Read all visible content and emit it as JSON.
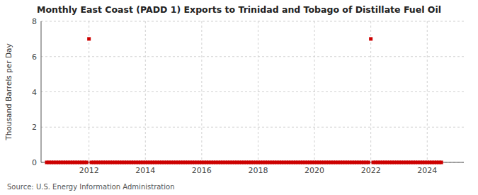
{
  "chart_data": {
    "type": "scatter",
    "title": "Monthly East Coast (PADD 1) Exports to Trinidad and Tobago of Distillate Fuel Oil",
    "ylabel": "Thousand Barrels per Day",
    "source": "Source: U.S. Energy Information Administration",
    "color": "#cc0000",
    "marker": "square",
    "grid": true,
    "xlim": [
      2010.3,
      2025.3
    ],
    "xticks": [
      2012,
      2014,
      2016,
      2018,
      2020,
      2022,
      2024
    ],
    "ylim": [
      0,
      8
    ],
    "yticks": [
      0,
      2,
      4,
      6,
      8
    ],
    "x": [
      2010.5,
      2010.583,
      2010.667,
      2010.75,
      2010.833,
      2010.917,
      2011.0,
      2011.083,
      2011.167,
      2011.25,
      2011.333,
      2011.417,
      2011.5,
      2011.583,
      2011.667,
      2011.75,
      2011.833,
      2011.917,
      2012.0,
      2012.083,
      2012.167,
      2012.25,
      2012.333,
      2012.417,
      2012.5,
      2012.583,
      2012.667,
      2012.75,
      2012.833,
      2012.917,
      2013.0,
      2013.083,
      2013.167,
      2013.25,
      2013.333,
      2013.417,
      2013.5,
      2013.583,
      2013.667,
      2013.75,
      2013.833,
      2013.917,
      2014.0,
      2014.083,
      2014.167,
      2014.25,
      2014.333,
      2014.417,
      2014.5,
      2014.583,
      2014.667,
      2014.75,
      2014.833,
      2014.917,
      2015.0,
      2015.083,
      2015.167,
      2015.25,
      2015.333,
      2015.417,
      2015.5,
      2015.583,
      2015.667,
      2015.75,
      2015.833,
      2015.917,
      2016.0,
      2016.083,
      2016.167,
      2016.25,
      2016.333,
      2016.417,
      2016.5,
      2016.583,
      2016.667,
      2016.75,
      2016.833,
      2016.917,
      2017.0,
      2017.083,
      2017.167,
      2017.25,
      2017.333,
      2017.417,
      2017.5,
      2017.583,
      2017.667,
      2017.75,
      2017.833,
      2017.917,
      2018.0,
      2018.083,
      2018.167,
      2018.25,
      2018.333,
      2018.417,
      2018.5,
      2018.583,
      2018.667,
      2018.75,
      2018.833,
      2018.917,
      2019.0,
      2019.083,
      2019.167,
      2019.25,
      2019.333,
      2019.417,
      2019.5,
      2019.583,
      2019.667,
      2019.75,
      2019.833,
      2019.917,
      2020.0,
      2020.083,
      2020.167,
      2020.25,
      2020.333,
      2020.417,
      2020.5,
      2020.583,
      2020.667,
      2020.75,
      2020.833,
      2020.917,
      2021.0,
      2021.083,
      2021.167,
      2021.25,
      2021.333,
      2021.417,
      2021.5,
      2021.583,
      2021.667,
      2021.75,
      2021.833,
      2021.917,
      2022.0,
      2022.083,
      2022.167,
      2022.25,
      2022.333,
      2022.417,
      2022.5,
      2022.583,
      2022.667,
      2022.75,
      2022.833,
      2022.917,
      2023.0,
      2023.083,
      2023.167,
      2023.25,
      2023.333,
      2023.417,
      2023.5,
      2023.583,
      2023.667,
      2023.75,
      2023.833,
      2023.917,
      2024.0,
      2024.083,
      2024.167,
      2024.25,
      2024.333,
      2024.417,
      2024.5
    ],
    "values": [
      0.0,
      0.0,
      0.0,
      0.0,
      0.0,
      0.0,
      0.0,
      0.0,
      0.0,
      0.0,
      0.0,
      0.0,
      0.0,
      0.0,
      0.0,
      0.0,
      0.0,
      0.0,
      7.0,
      0.0,
      0.0,
      0.0,
      0.0,
      0.0,
      0.0,
      0.0,
      0.0,
      0.0,
      0.0,
      0.0,
      0.0,
      0.0,
      0.0,
      0.0,
      0.0,
      0.0,
      0.0,
      0.0,
      0.0,
      0.0,
      0.0,
      0.0,
      0.0,
      0.0,
      0.0,
      0.0,
      0.0,
      0.0,
      0.0,
      0.0,
      0.0,
      0.0,
      0.0,
      0.0,
      0.0,
      0.0,
      0.0,
      0.0,
      0.0,
      0.0,
      0.0,
      0.0,
      0.0,
      0.0,
      0.0,
      0.0,
      0.0,
      0.0,
      0.0,
      0.0,
      0.0,
      0.0,
      0.0,
      0.0,
      0.0,
      0.0,
      0.0,
      0.0,
      0.0,
      0.0,
      0.0,
      0.0,
      0.0,
      0.0,
      0.0,
      0.0,
      0.0,
      0.0,
      0.0,
      0.0,
      0.0,
      0.0,
      0.0,
      0.0,
      0.0,
      0.0,
      0.0,
      0.0,
      0.0,
      0.0,
      0.0,
      0.0,
      0.0,
      0.0,
      0.0,
      0.0,
      0.0,
      0.0,
      0.0,
      0.0,
      0.0,
      0.0,
      0.0,
      0.0,
      0.0,
      0.0,
      0.0,
      0.0,
      0.0,
      0.0,
      0.0,
      0.0,
      0.0,
      0.0,
      0.0,
      0.0,
      0.0,
      0.0,
      0.0,
      0.0,
      0.0,
      0.0,
      0.0,
      0.0,
      0.0,
      0.0,
      0.0,
      0.0,
      7.0,
      0.0,
      0.0,
      0.0,
      0.0,
      0.0,
      0.0,
      0.0,
      0.0,
      0.0,
      0.0,
      0.0,
      0.0,
      0.0,
      0.0,
      0.0,
      0.0,
      0.0,
      0.0,
      0.0,
      0.0,
      0.0,
      0.0,
      0.0,
      0.0,
      0.0,
      0.0,
      0.0,
      0.0,
      0.0,
      0.0
    ]
  }
}
